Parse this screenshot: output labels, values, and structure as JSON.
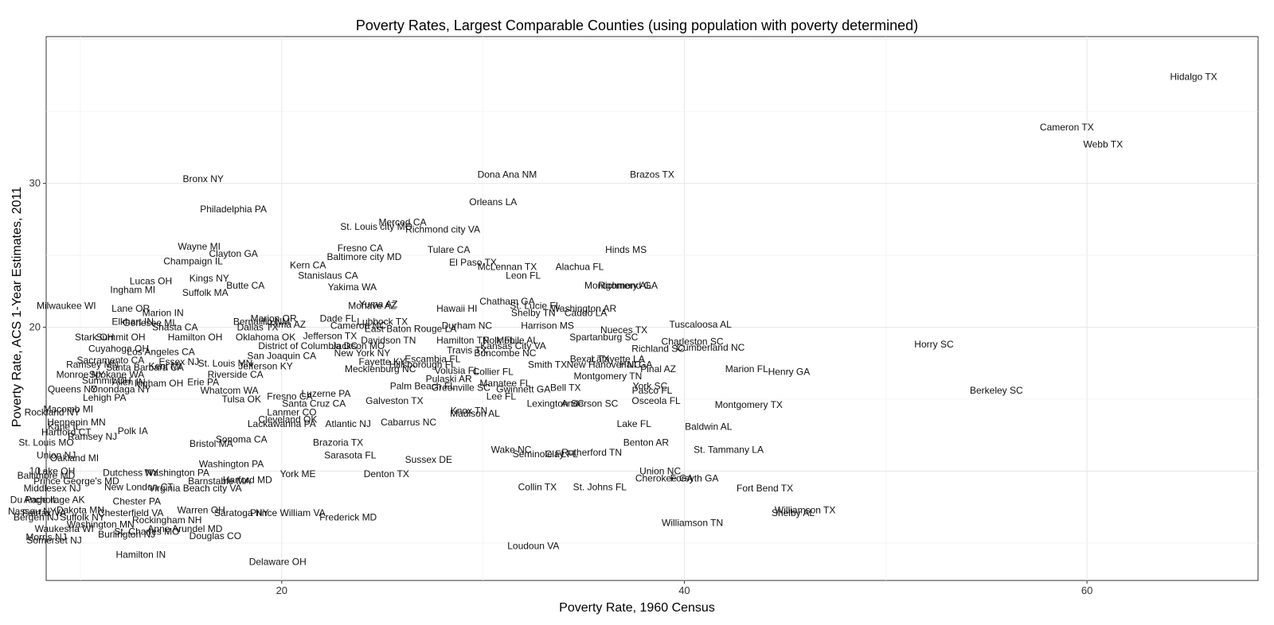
{
  "chart_data": {
    "type": "scatter",
    "title": "Poverty Rates, Largest Comparable Counties (using population with poverty determined)",
    "xlabel": "Poverty Rate, 1960 Census",
    "ylabel": "Poverty Rate, ACS 1-Year Estimates, 2011",
    "xlim": [
      8.3,
      68.5
    ],
    "ylim": [
      2.4,
      40.2
    ],
    "x_ticks": [
      20,
      40,
      60
    ],
    "y_ticks": [
      10,
      20,
      30
    ],
    "grid": true,
    "point_style": "text labels",
    "points": [
      {
        "label": "Hidalgo  TX",
        "x": 65.3,
        "y": 37.4
      },
      {
        "label": "Cameron  TX",
        "x": 59.0,
        "y": 33.9
      },
      {
        "label": "Webb  TX",
        "x": 60.8,
        "y": 32.7
      },
      {
        "label": "Bronx  NY",
        "x": 16.1,
        "y": 30.3
      },
      {
        "label": "Dona Ana  NM",
        "x": 31.2,
        "y": 30.6
      },
      {
        "label": "Brazos  TX",
        "x": 38.4,
        "y": 30.6
      },
      {
        "label": "Orleans  LA",
        "x": 30.5,
        "y": 28.7
      },
      {
        "label": "Philadelphia  PA",
        "x": 17.6,
        "y": 28.2
      },
      {
        "label": "Merced  CA",
        "x": 26.0,
        "y": 27.3
      },
      {
        "label": "St. Louis city MO",
        "x": 24.7,
        "y": 27.0
      },
      {
        "label": "Richmond city VA",
        "x": 28.0,
        "y": 26.8
      },
      {
        "label": "Wayne  MI",
        "x": 15.9,
        "y": 25.6
      },
      {
        "label": "Fresno  CA",
        "x": 23.9,
        "y": 25.5
      },
      {
        "label": "Tulare  CA",
        "x": 28.3,
        "y": 25.4
      },
      {
        "label": "Hinds  MS",
        "x": 37.1,
        "y": 25.4
      },
      {
        "label": "Clayton  GA",
        "x": 17.6,
        "y": 25.1
      },
      {
        "label": "Baltimore city MD",
        "x": 24.1,
        "y": 24.9
      },
      {
        "label": "Champaign  IL",
        "x": 15.6,
        "y": 24.6
      },
      {
        "label": "El Paso  TX",
        "x": 29.5,
        "y": 24.5
      },
      {
        "label": "Kern  CA",
        "x": 21.3,
        "y": 24.3
      },
      {
        "label": "McLennan  TX",
        "x": 31.2,
        "y": 24.2
      },
      {
        "label": "Alachua  FL",
        "x": 34.8,
        "y": 24.2
      },
      {
        "label": "Stanislaus  CA",
        "x": 22.3,
        "y": 23.6
      },
      {
        "label": "Leon  FL",
        "x": 32.0,
        "y": 23.6
      },
      {
        "label": "Kings  NY",
        "x": 16.4,
        "y": 23.4
      },
      {
        "label": "Lucas  OH",
        "x": 13.5,
        "y": 23.2
      },
      {
        "label": "Butte  CA",
        "x": 18.2,
        "y": 22.9
      },
      {
        "label": "Yakima  WA",
        "x": 23.5,
        "y": 22.8
      },
      {
        "label": "Richmond  GA",
        "x": 37.2,
        "y": 22.9
      },
      {
        "label": "Montgomery  AL",
        "x": 36.7,
        "y": 22.9
      },
      {
        "label": "Ingham  MI",
        "x": 12.6,
        "y": 22.6
      },
      {
        "label": "Suffolk  MA",
        "x": 16.2,
        "y": 22.4
      },
      {
        "label": "Mohave  AZ",
        "x": 24.5,
        "y": 21.5
      },
      {
        "label": "Yuma  AZ",
        "x": 24.8,
        "y": 21.6
      },
      {
        "label": "Chatham  GA",
        "x": 31.2,
        "y": 21.8
      },
      {
        "label": "Milwaukee  WI",
        "x": 9.3,
        "y": 21.5
      },
      {
        "label": "Lane  OR",
        "x": 12.5,
        "y": 21.3
      },
      {
        "label": "Hawaii  HI",
        "x": 28.7,
        "y": 21.3
      },
      {
        "label": "St. Lucie  FL",
        "x": 32.6,
        "y": 21.5
      },
      {
        "label": "Washington  AR",
        "x": 35.0,
        "y": 21.3
      },
      {
        "label": "Shelby  TN",
        "x": 32.5,
        "y": 21.0
      },
      {
        "label": "Caddo  LA",
        "x": 35.1,
        "y": 21.0
      },
      {
        "label": "Marion  IN",
        "x": 14.1,
        "y": 21.0
      },
      {
        "label": "Elkhart  IN",
        "x": 12.6,
        "y": 20.4
      },
      {
        "label": "Genesee  MI",
        "x": 13.4,
        "y": 20.3
      },
      {
        "label": "Marion  OR",
        "x": 19.6,
        "y": 20.6
      },
      {
        "label": "Dade  FL",
        "x": 22.8,
        "y": 20.6
      },
      {
        "label": "Bernalillo  NM",
        "x": 19.0,
        "y": 20.4
      },
      {
        "label": "Pima  AZ",
        "x": 20.3,
        "y": 20.2
      },
      {
        "label": "Lubbock  TX",
        "x": 25.0,
        "y": 20.4
      },
      {
        "label": "Cameron  NC",
        "x": 23.8,
        "y": 20.1
      },
      {
        "label": "Durham  NC",
        "x": 29.2,
        "y": 20.1
      },
      {
        "label": "Harrison  MS",
        "x": 33.2,
        "y": 20.1
      },
      {
        "label": "Tuscaloosa  AL",
        "x": 40.8,
        "y": 20.2
      },
      {
        "label": "Shasta  CA",
        "x": 14.7,
        "y": 20.0
      },
      {
        "label": "Dallas  TX",
        "x": 18.8,
        "y": 20.0
      },
      {
        "label": "East Baton Rouge  LA",
        "x": 26.4,
        "y": 19.9
      },
      {
        "label": "Nueces  TX",
        "x": 37.0,
        "y": 19.8
      },
      {
        "label": "Stark  OH",
        "x": 10.7,
        "y": 19.3
      },
      {
        "label": "Summit  OH",
        "x": 12.0,
        "y": 19.3
      },
      {
        "label": "Oklahoma  OK",
        "x": 19.2,
        "y": 19.3
      },
      {
        "label": "Hamilton  OH",
        "x": 15.7,
        "y": 19.3
      },
      {
        "label": "Jefferson  TX",
        "x": 22.4,
        "y": 19.4
      },
      {
        "label": "Davidson  TN",
        "x": 25.3,
        "y": 19.1
      },
      {
        "label": "Hamilton  TN",
        "x": 29.0,
        "y": 19.1
      },
      {
        "label": "Polk  FL",
        "x": 30.8,
        "y": 19.1
      },
      {
        "label": "Mobile  AL",
        "x": 31.7,
        "y": 19.1
      },
      {
        "label": "Spartanburg  SC",
        "x": 36.0,
        "y": 19.3
      },
      {
        "label": "Charleston  SC",
        "x": 40.4,
        "y": 19.0
      },
      {
        "label": "Horry  SC",
        "x": 52.4,
        "y": 18.8
      },
      {
        "label": "District of Columbia  DC",
        "x": 21.3,
        "y": 18.7
      },
      {
        "label": "Jackson  MO",
        "x": 23.8,
        "y": 18.7
      },
      {
        "label": "Kansas City  VA",
        "x": 31.5,
        "y": 18.7
      },
      {
        "label": "Travis  TX",
        "x": 29.2,
        "y": 18.4
      },
      {
        "label": "Buncombe  NC",
        "x": 31.1,
        "y": 18.2
      },
      {
        "label": "Richland  SC",
        "x": 38.7,
        "y": 18.5
      },
      {
        "label": "Cumberland  NC",
        "x": 41.3,
        "y": 18.6
      },
      {
        "label": "Cuyahoga  OH",
        "x": 11.9,
        "y": 18.5
      },
      {
        "label": "Los Angeles  CA",
        "x": 14.0,
        "y": 18.3
      },
      {
        "label": "San Joaquin  CA",
        "x": 20.0,
        "y": 18.0
      },
      {
        "label": "New York  NY",
        "x": 24.0,
        "y": 18.2
      },
      {
        "label": "Escambia  FL",
        "x": 27.5,
        "y": 17.8
      },
      {
        "label": "Bexar  TX",
        "x": 35.3,
        "y": 17.8
      },
      {
        "label": "Lafayette  LA",
        "x": 36.7,
        "y": 17.8
      },
      {
        "label": "Sacramento  CA",
        "x": 11.5,
        "y": 17.7
      },
      {
        "label": "Ramsey  MN",
        "x": 10.6,
        "y": 17.4
      },
      {
        "label": "Essex  NJ",
        "x": 14.9,
        "y": 17.6
      },
      {
        "label": "St. Louis  MN",
        "x": 17.2,
        "y": 17.5
      },
      {
        "label": "Jefferson  KY",
        "x": 19.2,
        "y": 17.3
      },
      {
        "label": "Fayette  KY",
        "x": 25.0,
        "y": 17.6
      },
      {
        "label": "Hillsborough  FL",
        "x": 27.0,
        "y": 17.4
      },
      {
        "label": "Smith  TX",
        "x": 33.2,
        "y": 17.4
      },
      {
        "label": "New Hanover  NC",
        "x": 36.0,
        "y": 17.4
      },
      {
        "label": "Hall  GA",
        "x": 37.6,
        "y": 17.4
      },
      {
        "label": "Pinal  AZ",
        "x": 38.7,
        "y": 17.1
      },
      {
        "label": "Marion  FL",
        "x": 43.1,
        "y": 17.1
      },
      {
        "label": "Henry  GA",
        "x": 45.2,
        "y": 16.9
      },
      {
        "label": "Kent  MI",
        "x": 14.2,
        "y": 17.3
      },
      {
        "label": "Santa Barbara  CA",
        "x": 13.2,
        "y": 17.2
      },
      {
        "label": "Mecklenburg  NC",
        "x": 24.9,
        "y": 17.1
      },
      {
        "label": "Volusia  FL",
        "x": 28.7,
        "y": 17.0
      },
      {
        "label": "Collier  FL",
        "x": 30.5,
        "y": 16.9
      },
      {
        "label": "Monroe  NY",
        "x": 10.0,
        "y": 16.7
      },
      {
        "label": "Spokane  WA",
        "x": 11.8,
        "y": 16.7
      },
      {
        "label": "Riverside  CA",
        "x": 17.7,
        "y": 16.7
      },
      {
        "label": "Montgomery  TN",
        "x": 36.2,
        "y": 16.6
      },
      {
        "label": "Pulaski  AR",
        "x": 28.3,
        "y": 16.4
      },
      {
        "label": "Summit  OH",
        "x": 11.3,
        "y": 16.3
      },
      {
        "label": "Allen  IN",
        "x": 12.4,
        "y": 16.2
      },
      {
        "label": "Ingham  OH",
        "x": 13.9,
        "y": 16.1
      },
      {
        "label": "Erie  PA",
        "x": 16.1,
        "y": 16.2
      },
      {
        "label": "Palm Beach  FL",
        "x": 27.0,
        "y": 15.9
      },
      {
        "label": "Greenville  SC",
        "x": 28.9,
        "y": 15.8
      },
      {
        "label": "Manatee  FL",
        "x": 31.1,
        "y": 16.1
      },
      {
        "label": "Gwinnett  GA",
        "x": 32.0,
        "y": 15.7
      },
      {
        "label": "Bell  TX",
        "x": 34.1,
        "y": 15.8
      },
      {
        "label": "York  SC",
        "x": 38.3,
        "y": 15.9
      },
      {
        "label": "Pasco  FL",
        "x": 38.4,
        "y": 15.6
      },
      {
        "label": "Queens  NY",
        "x": 9.6,
        "y": 15.7
      },
      {
        "label": "Onondaga  NY",
        "x": 12.0,
        "y": 15.7
      },
      {
        "label": "Whatcom  WA",
        "x": 17.4,
        "y": 15.6
      },
      {
        "label": "Luzerne  PA",
        "x": 22.2,
        "y": 15.4
      },
      {
        "label": "Lee  FL",
        "x": 30.9,
        "y": 15.2
      },
      {
        "label": "Lehigh  PA",
        "x": 11.2,
        "y": 15.1
      },
      {
        "label": "Tulsa  OK",
        "x": 18.0,
        "y": 15.0
      },
      {
        "label": "Fresno  CA",
        "x": 20.4,
        "y": 15.2
      },
      {
        "label": "Galveston  TX",
        "x": 25.6,
        "y": 14.9
      },
      {
        "label": "Santa Cruz  CA",
        "x": 21.6,
        "y": 14.7
      },
      {
        "label": "Osceola  FL",
        "x": 38.6,
        "y": 14.9
      },
      {
        "label": "Lexington  SC",
        "x": 33.6,
        "y": 14.7
      },
      {
        "label": "Anderson  SC",
        "x": 35.3,
        "y": 14.7
      },
      {
        "label": "Montgomery  TX",
        "x": 43.2,
        "y": 14.6
      },
      {
        "label": "Berkeley  SC",
        "x": 55.5,
        "y": 15.6
      },
      {
        "label": "Macomb  MI",
        "x": 9.4,
        "y": 14.3
      },
      {
        "label": "Rockland  NY",
        "x": 8.6,
        "y": 14.1
      },
      {
        "label": "Lanmer  CO",
        "x": 20.5,
        "y": 14.1
      },
      {
        "label": "Knox  TN",
        "x": 29.3,
        "y": 14.2
      },
      {
        "label": "Madison  AL",
        "x": 29.6,
        "y": 14.0
      },
      {
        "label": "Cleveland  OK",
        "x": 20.3,
        "y": 13.6
      },
      {
        "label": "Lackawanna  PA",
        "x": 20.0,
        "y": 13.3
      },
      {
        "label": "Atlantic  NJ",
        "x": 23.3,
        "y": 13.3
      },
      {
        "label": "Cabarrus  NC",
        "x": 26.3,
        "y": 13.4
      },
      {
        "label": "Lake  FL",
        "x": 37.5,
        "y": 13.3
      },
      {
        "label": "Baldwin  AL",
        "x": 41.2,
        "y": 13.1
      },
      {
        "label": "Hennepin  MN",
        "x": 9.8,
        "y": 13.4
      },
      {
        "label": "Kane  IL",
        "x": 9.2,
        "y": 13.1
      },
      {
        "label": "Polk  IA",
        "x": 12.6,
        "y": 12.8
      },
      {
        "label": "Hartford  CT",
        "x": 9.3,
        "y": 12.7
      },
      {
        "label": "Ramsey  NJ",
        "x": 10.6,
        "y": 12.4
      },
      {
        "label": "Sonoma  CA",
        "x": 18.0,
        "y": 12.2
      },
      {
        "label": "Brazoria  TX",
        "x": 22.8,
        "y": 12.0
      },
      {
        "label": "Benton  AR",
        "x": 38.1,
        "y": 12.0
      },
      {
        "label": "St. Louis  MO",
        "x": 8.3,
        "y": 12.0
      },
      {
        "label": "Bristol  MA",
        "x": 16.5,
        "y": 11.9
      },
      {
        "label": "Wake  NC",
        "x": 31.4,
        "y": 11.5
      },
      {
        "label": "Seminole  FL",
        "x": 32.8,
        "y": 11.2
      },
      {
        "label": "Clay  FL",
        "x": 33.9,
        "y": 11.2
      },
      {
        "label": "Rutherford  TN",
        "x": 35.4,
        "y": 11.3
      },
      {
        "label": "St. Tammany  LA",
        "x": 42.2,
        "y": 11.5
      },
      {
        "label": "Union  NJ",
        "x": 8.8,
        "y": 11.1
      },
      {
        "label": "Oakland  MI",
        "x": 9.7,
        "y": 10.9
      },
      {
        "label": "Sarasota  FL",
        "x": 23.4,
        "y": 11.1
      },
      {
        "label": "Sussex  DE",
        "x": 27.3,
        "y": 10.8
      },
      {
        "label": "Washington  PA",
        "x": 17.5,
        "y": 10.5
      },
      {
        "label": "Union  NC",
        "x": 38.8,
        "y": 10.0
      },
      {
        "label": "Lake  OH",
        "x": 8.8,
        "y": 10.0
      },
      {
        "label": "Dutchess  NY",
        "x": 12.5,
        "y": 9.9
      },
      {
        "label": "Washington  PA",
        "x": 14.8,
        "y": 9.9
      },
      {
        "label": "York  ME",
        "x": 20.8,
        "y": 9.8
      },
      {
        "label": "Denton  TX",
        "x": 25.2,
        "y": 9.8
      },
      {
        "label": "Cherokee  GA",
        "x": 39.0,
        "y": 9.5
      },
      {
        "label": "Forsyth  GA",
        "x": 40.5,
        "y": 9.5
      },
      {
        "label": "Baltimore  MD",
        "x": 8.3,
        "y": 9.7
      },
      {
        "label": "Prince George's  MD",
        "x": 9.8,
        "y": 9.3
      },
      {
        "label": "Barnstable  MA",
        "x": 16.9,
        "y": 9.3
      },
      {
        "label": "Harford  MD",
        "x": 18.3,
        "y": 9.4
      },
      {
        "label": "New London  CT",
        "x": 12.9,
        "y": 8.9
      },
      {
        "label": "Collin  TX",
        "x": 32.7,
        "y": 8.9
      },
      {
        "label": "St. Johns  FL",
        "x": 35.8,
        "y": 8.9
      },
      {
        "label": "Fort Bend  TX",
        "x": 44.0,
        "y": 8.8
      },
      {
        "label": "Middlesex  NJ",
        "x": 8.6,
        "y": 8.8
      },
      {
        "label": "Virginia Beach city VA",
        "x": 15.7,
        "y": 8.8
      },
      {
        "label": "Du Page  IL",
        "x": 7.7,
        "y": 8.0
      },
      {
        "label": "Anchorage  AK",
        "x": 8.7,
        "y": 8.0
      },
      {
        "label": "Chester  PA",
        "x": 12.8,
        "y": 7.9
      },
      {
        "label": "Warren  OH",
        "x": 16.0,
        "y": 7.3
      },
      {
        "label": "Dakota  MN",
        "x": 10.0,
        "y": 7.3
      },
      {
        "label": "Chesterfield  VA",
        "x": 12.5,
        "y": 7.1
      },
      {
        "label": "Saratoga  NY",
        "x": 18.0,
        "y": 7.1
      },
      {
        "label": "Prince William  VA",
        "x": 20.3,
        "y": 7.1
      },
      {
        "label": "Williamson  TX",
        "x": 46.0,
        "y": 7.3
      },
      {
        "label": "Shelby  AL",
        "x": 45.4,
        "y": 7.1
      },
      {
        "label": "Nassau  NY",
        "x": 7.6,
        "y": 7.2
      },
      {
        "label": "Fairfax  VA",
        "x": 8.2,
        "y": 7.1
      },
      {
        "label": "Bergen  NJ",
        "x": 7.8,
        "y": 6.8
      },
      {
        "label": "Suffolk  NY",
        "x": 10.1,
        "y": 6.8
      },
      {
        "label": "Rockingham  NH",
        "x": 14.3,
        "y": 6.6
      },
      {
        "label": "Frederick  MD",
        "x": 23.3,
        "y": 6.8
      },
      {
        "label": "Williamson  TN",
        "x": 40.4,
        "y": 6.4
      },
      {
        "label": "Washington  MN",
        "x": 11.0,
        "y": 6.3
      },
      {
        "label": "Anne Arundel  MD",
        "x": 15.2,
        "y": 6.0
      },
      {
        "label": "Waukesha  WI",
        "x": 9.2,
        "y": 6.0
      },
      {
        "label": "St. Charles  MO",
        "x": 13.3,
        "y": 5.8
      },
      {
        "label": "Burlington  NJ",
        "x": 12.3,
        "y": 5.6
      },
      {
        "label": "Douglas  CO",
        "x": 16.7,
        "y": 5.5
      },
      {
        "label": "Loudoun  VA",
        "x": 32.5,
        "y": 4.8
      },
      {
        "label": "Morris  NJ",
        "x": 8.3,
        "y": 5.4
      },
      {
        "label": "Somerset  NJ",
        "x": 8.7,
        "y": 5.2
      },
      {
        "label": "Hamilton  IN",
        "x": 13.0,
        "y": 4.2
      },
      {
        "label": "Delaware  OH",
        "x": 19.8,
        "y": 3.7
      }
    ]
  }
}
